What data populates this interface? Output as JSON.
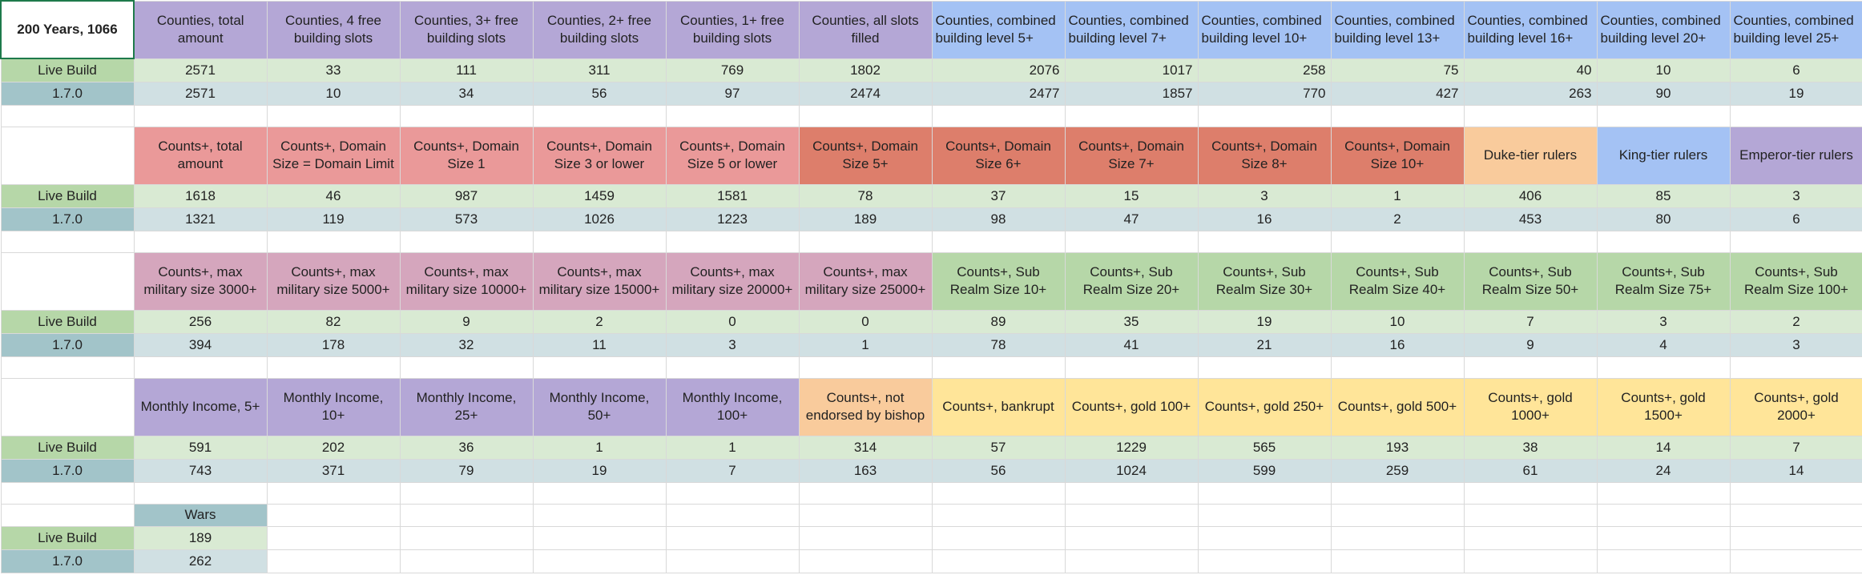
{
  "sheet": {
    "title": "200 Years, 1066",
    "row_labels": {
      "live": "Live Build",
      "version": "1.7.0"
    },
    "sections": [
      {
        "headers": [
          {
            "label": "Counties, total amount",
            "color": "#b4a7d6"
          },
          {
            "label": "Counties, 4 free building slots",
            "color": "#b4a7d6"
          },
          {
            "label": "Counties, 3+ free building slots",
            "color": "#b4a7d6"
          },
          {
            "label": "Counties, 2+ free building slots",
            "color": "#b4a7d6"
          },
          {
            "label": "Counties, 1+ free building slots",
            "color": "#b4a7d6"
          },
          {
            "label": "Counties, all slots filled",
            "color": "#b4a7d6"
          },
          {
            "label": "Counties, combined building level 5+",
            "color": "#a4c2f4"
          },
          {
            "label": "Counties, combined building level 7+",
            "color": "#a4c2f4"
          },
          {
            "label": "Counties, combined building level 10+",
            "color": "#a4c2f4"
          },
          {
            "label": "Counties, combined building level 13+",
            "color": "#a4c2f4"
          },
          {
            "label": "Counties, combined building level 16+",
            "color": "#a4c2f4"
          },
          {
            "label": "Counties, combined building level 20+",
            "color": "#a4c2f4"
          },
          {
            "label": "Counties, combined building level 25+",
            "color": "#a4c2f4"
          }
        ],
        "live": [
          "2571",
          "33",
          "111",
          "311",
          "769",
          "1802",
          "2076",
          "1017",
          "258",
          "75",
          "40",
          "10",
          "6"
        ],
        "version": [
          "2571",
          "10",
          "34",
          "56",
          "97",
          "2474",
          "2477",
          "1857",
          "770",
          "427",
          "263",
          "90",
          "19"
        ]
      },
      {
        "headers": [
          {
            "label": "Counts+, total amount",
            "color": "#ea9999"
          },
          {
            "label": "Counts+, Domain Size = Domain Limit",
            "color": "#ea9999"
          },
          {
            "label": "Counts+, Domain Size 1",
            "color": "#ea9999"
          },
          {
            "label": "Counts+, Domain Size 3 or lower",
            "color": "#ea9999"
          },
          {
            "label": "Counts+, Domain Size 5 or lower",
            "color": "#ea9999"
          },
          {
            "label": "Counts+, Domain Size 5+",
            "color": "#dd7e6b"
          },
          {
            "label": "Counts+, Domain Size 6+",
            "color": "#dd7e6b"
          },
          {
            "label": "Counts+, Domain Size 7+",
            "color": "#dd7e6b"
          },
          {
            "label": "Counts+, Domain Size 8+",
            "color": "#dd7e6b"
          },
          {
            "label": "Counts+, Domain Size 10+",
            "color": "#dd7e6b"
          },
          {
            "label": "Duke-tier rulers",
            "color": "#f9cb9c"
          },
          {
            "label": "King-tier rulers",
            "color": "#a4c2f4"
          },
          {
            "label": "Emperor-tier rulers",
            "color": "#b4a7d6"
          }
        ],
        "live": [
          "1618",
          "46",
          "987",
          "1459",
          "1581",
          "78",
          "37",
          "15",
          "3",
          "1",
          "406",
          "85",
          "3"
        ],
        "version": [
          "1321",
          "119",
          "573",
          "1026",
          "1223",
          "189",
          "98",
          "47",
          "16",
          "2",
          "453",
          "80",
          "6"
        ]
      },
      {
        "headers": [
          {
            "label": "Counts+, max military size 3000+",
            "color": "#d5a6bd"
          },
          {
            "label": "Counts+, max military size 5000+",
            "color": "#d5a6bd"
          },
          {
            "label": "Counts+, max military size 10000+",
            "color": "#d5a6bd"
          },
          {
            "label": "Counts+, max military size 15000+",
            "color": "#d5a6bd"
          },
          {
            "label": "Counts+, max military size 20000+",
            "color": "#d5a6bd"
          },
          {
            "label": "Counts+, max military size 25000+",
            "color": "#d5a6bd"
          },
          {
            "label": "Counts+, Sub Realm Size 10+",
            "color": "#b6d7a8"
          },
          {
            "label": "Counts+, Sub Realm Size 20+",
            "color": "#b6d7a8"
          },
          {
            "label": "Counts+, Sub Realm Size 30+",
            "color": "#b6d7a8"
          },
          {
            "label": "Counts+, Sub Realm Size 40+",
            "color": "#b6d7a8"
          },
          {
            "label": "Counts+, Sub Realm Size 50+",
            "color": "#b6d7a8"
          },
          {
            "label": "Counts+, Sub Realm Size 75+",
            "color": "#b6d7a8"
          },
          {
            "label": "Counts+, Sub Realm Size 100+",
            "color": "#b6d7a8"
          }
        ],
        "live": [
          "256",
          "82",
          "9",
          "2",
          "0",
          "0",
          "89",
          "35",
          "19",
          "10",
          "7",
          "3",
          "2"
        ],
        "version": [
          "394",
          "178",
          "32",
          "11",
          "3",
          "1",
          "78",
          "41",
          "21",
          "16",
          "9",
          "4",
          "3"
        ]
      },
      {
        "headers": [
          {
            "label": "Monthly Income, 5+",
            "color": "#b4a7d6"
          },
          {
            "label": "Monthly Income, 10+",
            "color": "#b4a7d6"
          },
          {
            "label": "Monthly Income, 25+",
            "color": "#b4a7d6"
          },
          {
            "label": "Monthly Income, 50+",
            "color": "#b4a7d6"
          },
          {
            "label": "Monthly Income, 100+",
            "color": "#b4a7d6"
          },
          {
            "label": "Counts+, not endorsed by bishop",
            "color": "#f9cb9c"
          },
          {
            "label": "Counts+, bankrupt",
            "color": "#ffe599"
          },
          {
            "label": "Counts+, gold 100+",
            "color": "#ffe599"
          },
          {
            "label": "Counts+, gold 250+",
            "color": "#ffe599"
          },
          {
            "label": "Counts+, gold 500+",
            "color": "#ffe599"
          },
          {
            "label": "Counts+, gold 1000+",
            "color": "#ffe599"
          },
          {
            "label": "Counts+, gold 1500+",
            "color": "#ffe599"
          },
          {
            "label": "Counts+, gold 2000+",
            "color": "#ffe599"
          }
        ],
        "live": [
          "591",
          "202",
          "36",
          "1",
          "1",
          "314",
          "57",
          "1229",
          "565",
          "193",
          "38",
          "14",
          "7"
        ],
        "version": [
          "743",
          "371",
          "79",
          "19",
          "7",
          "163",
          "56",
          "1024",
          "599",
          "259",
          "61",
          "24",
          "14"
        ]
      },
      {
        "headers": [
          {
            "label": "Wars",
            "color": "#a2c4c9"
          }
        ],
        "live": [
          "189"
        ],
        "version": [
          "262"
        ]
      }
    ]
  }
}
